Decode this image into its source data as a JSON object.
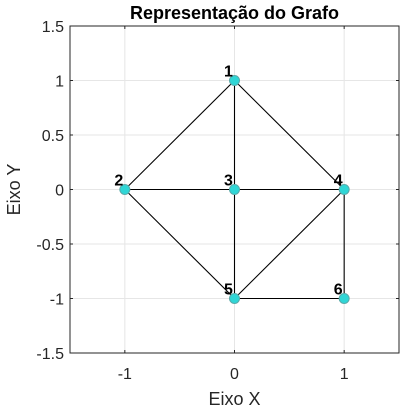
{
  "chart_data": {
    "type": "scatter",
    "title": "Representação do Grafo",
    "xlabel": "Eixo X",
    "ylabel": "Eixo Y",
    "xlim": [
      -1.5,
      1.5
    ],
    "ylim": [
      -1.5,
      1.5
    ],
    "grid": true,
    "xticks": [
      {
        "value": -1,
        "label": "-1"
      },
      {
        "value": 0,
        "label": "0"
      },
      {
        "value": 1,
        "label": "1"
      }
    ],
    "yticks": [
      {
        "value": 1.5,
        "label": "1.5"
      },
      {
        "value": 1,
        "label": "1"
      },
      {
        "value": 0.5,
        "label": "0.5"
      },
      {
        "value": 0,
        "label": "0"
      },
      {
        "value": -0.5,
        "label": "-0.5"
      },
      {
        "value": -1,
        "label": "-1"
      },
      {
        "value": -1.5,
        "label": "-1.5"
      }
    ],
    "nodes": [
      {
        "id": 1,
        "label": "1",
        "x": 0,
        "y": 1
      },
      {
        "id": 2,
        "label": "2",
        "x": -1,
        "y": 0
      },
      {
        "id": 3,
        "label": "3",
        "x": 0,
        "y": 0
      },
      {
        "id": 4,
        "label": "4",
        "x": 1,
        "y": 0
      },
      {
        "id": 5,
        "label": "5",
        "x": 0,
        "y": -1
      },
      {
        "id": 6,
        "label": "6",
        "x": 1,
        "y": -1
      }
    ],
    "edges": [
      [
        1,
        2
      ],
      [
        1,
        3
      ],
      [
        1,
        4
      ],
      [
        2,
        3
      ],
      [
        2,
        5
      ],
      [
        3,
        4
      ],
      [
        3,
        5
      ],
      [
        4,
        5
      ],
      [
        4,
        6
      ],
      [
        5,
        6
      ]
    ],
    "node_color": "#2fd6d6",
    "edge_color": "#000000"
  }
}
